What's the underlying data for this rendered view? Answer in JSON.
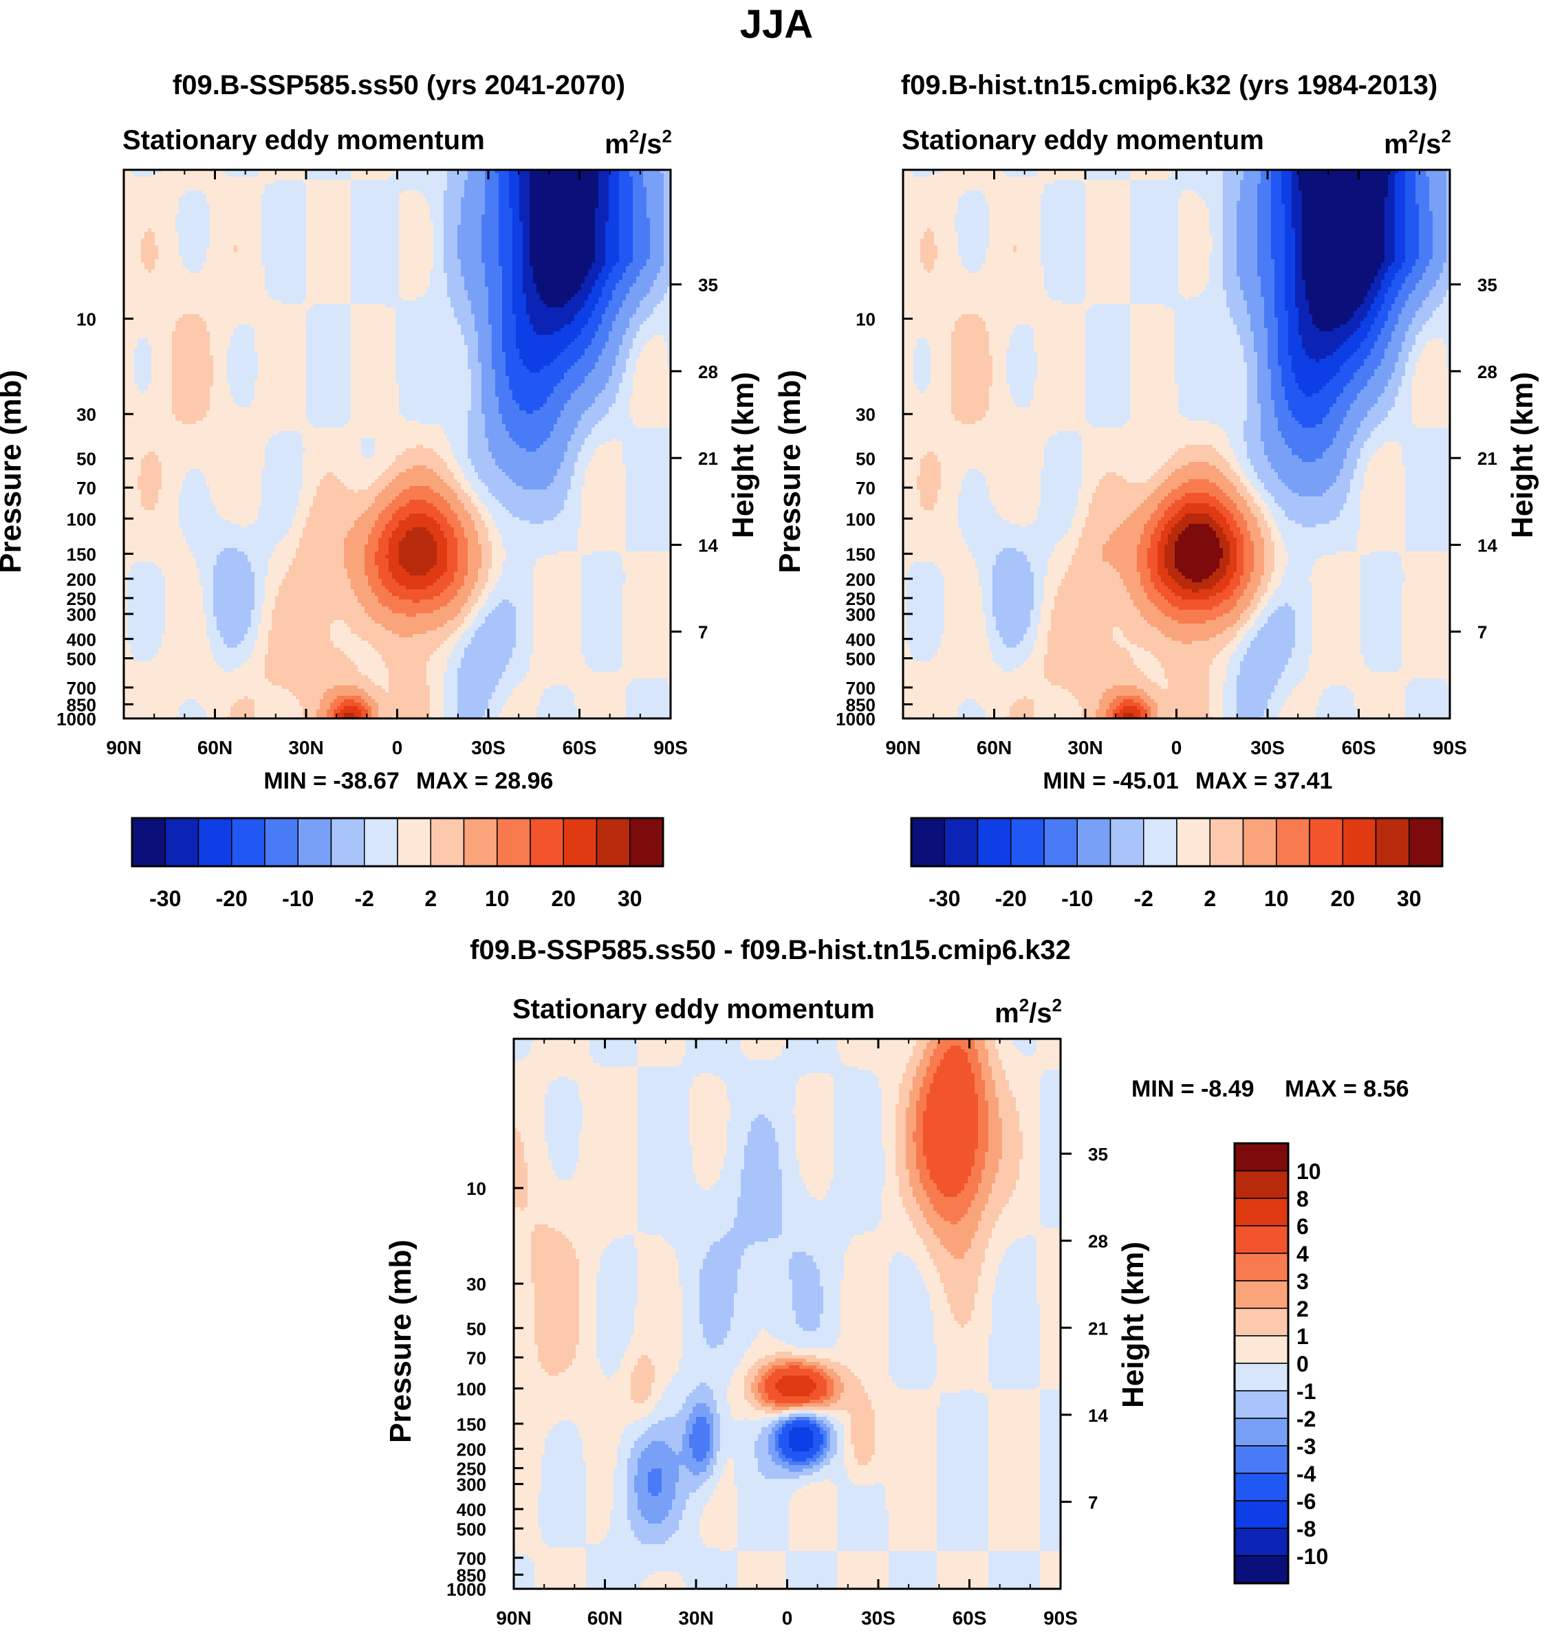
{
  "figure": {
    "title": "JJA"
  },
  "chart_data": [
    {
      "type": "heatmap",
      "title": "f09.B-SSP585.ss50 (yrs 2041-2070)",
      "subtitle": "Stationary eddy momentum",
      "units_base": "m",
      "units_rest": "/s",
      "xlabel": "",
      "ylabel": "Pressure (mb)",
      "y2label": "Height (km)",
      "xticks": [
        "90N",
        "60N",
        "30N",
        "0",
        "30S",
        "60S",
        "90S"
      ],
      "yticks": [
        "10",
        "30",
        "50",
        "70",
        "100",
        "150",
        "200",
        "250",
        "300",
        "400",
        "500",
        "700",
        "850",
        "1000"
      ],
      "y2ticks": [
        "35",
        "28",
        "21",
        "14",
        "7"
      ],
      "min_label": "MIN = -38.67",
      "max_label": "MAX =  28.96",
      "min": -38.67,
      "max": 28.96,
      "colorbar_labels": [
        "-30",
        "-20",
        "-10",
        "-2",
        "2",
        "10",
        "20",
        "30"
      ],
      "colorbar_colors": [
        "#0a0f7a",
        "#0b24b5",
        "#0d3ee6",
        "#2158f4",
        "#4a7bf6",
        "#78a0f7",
        "#a9c4fa",
        "#d7e6fb",
        "#fde8d7",
        "#fcc9ad",
        "#f9a47a",
        "#f77b4e",
        "#f2542c",
        "#df3a12",
        "#b82a0c",
        "#7e0b0b"
      ],
      "features": [
        {
          "kind": "jet",
          "name": "SH stratospheric jet",
          "lat": -55,
          "p": 3,
          "value": -38.67
        },
        {
          "kind": "blob",
          "name": "Tropical UT maximum",
          "lat": -7,
          "p": 150,
          "value": 28.96
        },
        {
          "kind": "blob",
          "name": "Surface maximum",
          "lat": 15,
          "p": 1000,
          "value": 25
        }
      ]
    },
    {
      "type": "heatmap",
      "title": "f09.B-hist.tn15.cmip6.k32 (yrs 1984-2013)",
      "subtitle": "Stationary eddy momentum",
      "units_base": "m",
      "units_rest": "/s",
      "xlabel": "",
      "ylabel": "Pressure (mb)",
      "y2label": "Height (km)",
      "xticks": [
        "90N",
        "60N",
        "30N",
        "0",
        "30S",
        "60S",
        "90S"
      ],
      "yticks": [
        "10",
        "30",
        "50",
        "70",
        "100",
        "150",
        "200",
        "250",
        "300",
        "400",
        "500",
        "700",
        "850",
        "1000"
      ],
      "y2ticks": [
        "35",
        "28",
        "21",
        "14",
        "7"
      ],
      "min_label": "MIN = -45.01",
      "max_label": "MAX =  37.41",
      "min": -45.01,
      "max": 37.41,
      "colorbar_labels": [
        "-30",
        "-20",
        "-10",
        "-2",
        "2",
        "10",
        "20",
        "30"
      ],
      "colorbar_colors": [
        "#0a0f7a",
        "#0b24b5",
        "#0d3ee6",
        "#2158f4",
        "#4a7bf6",
        "#78a0f7",
        "#a9c4fa",
        "#d7e6fb",
        "#fde8d7",
        "#fcc9ad",
        "#f9a47a",
        "#f77b4e",
        "#f2542c",
        "#df3a12",
        "#b82a0c",
        "#7e0b0b"
      ],
      "features": [
        {
          "kind": "jet",
          "name": "SH stratospheric jet",
          "lat": -55,
          "p": 3,
          "value": -45.01
        },
        {
          "kind": "blob",
          "name": "Tropical UT maximum",
          "lat": -7,
          "p": 150,
          "value": 37.41
        },
        {
          "kind": "blob",
          "name": "Surface maximum",
          "lat": 15,
          "p": 1000,
          "value": 25
        }
      ]
    },
    {
      "type": "heatmap",
      "title": "f09.B-SSP585.ss50 - f09.B-hist.tn15.cmip6.k32",
      "subtitle": "Stationary eddy momentum",
      "units_base": "m",
      "units_rest": "/s",
      "xlabel": "",
      "ylabel": "Pressure (mb)",
      "y2label": "Height (km)",
      "xticks": [
        "90N",
        "60N",
        "30N",
        "0",
        "30S",
        "60S",
        "90S"
      ],
      "yticks": [
        "10",
        "30",
        "50",
        "70",
        "100",
        "150",
        "200",
        "250",
        "300",
        "400",
        "500",
        "700",
        "850",
        "1000"
      ],
      "y2ticks": [
        "35",
        "28",
        "21",
        "14",
        "7"
      ],
      "min_label": "MIN =  -8.49",
      "max_label": "MAX =   8.56",
      "min": -8.49,
      "max": 8.56,
      "colorbar_labels": [
        "10",
        "8",
        "6",
        "4",
        "3",
        "2",
        "1",
        "0",
        "-1",
        "-2",
        "-3",
        "-4",
        "-6",
        "-8",
        "-10"
      ],
      "colorbar_colors": [
        "#7e0b0b",
        "#b82a0c",
        "#df3a12",
        "#f2542c",
        "#f77b4e",
        "#f9a47a",
        "#fcc9ad",
        "#fde8d7",
        "#d7e6fb",
        "#a9c4fa",
        "#78a0f7",
        "#4a7bf6",
        "#2158f4",
        "#0d3ee6",
        "#0b24b5",
        "#0a0f7a"
      ],
      "features": [
        {
          "kind": "blob",
          "name": "SH stratospheric increase",
          "lat": -55,
          "p": 5,
          "value": 6
        },
        {
          "kind": "blob",
          "name": "Tropical 100 mb increase",
          "lat": -3,
          "p": 100,
          "value": 8.56
        },
        {
          "kind": "blob",
          "name": "Tropical 170 mb decrease",
          "lat": -5,
          "p": 170,
          "value": -8.49
        },
        {
          "kind": "blob",
          "name": "Subtropical decrease",
          "lat": 28,
          "p": 180,
          "value": -4
        }
      ]
    }
  ]
}
